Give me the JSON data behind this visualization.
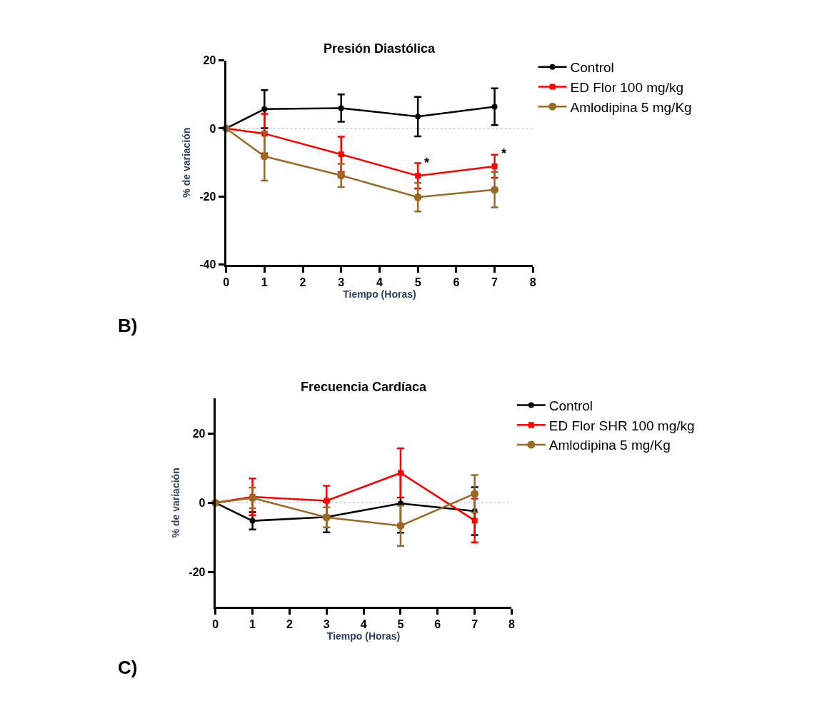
{
  "chart_data": [
    {
      "type": "line",
      "title": "Presión Diastólica",
      "xlabel": "Tiempo (Horas)",
      "ylabel": "% de variación",
      "x": [
        0,
        1,
        3,
        5,
        7
      ],
      "xlim": [
        0,
        8
      ],
      "xticks": [
        0,
        1,
        2,
        3,
        4,
        5,
        6,
        7,
        8
      ],
      "ylim": [
        -40,
        20
      ],
      "yticks": [
        -40,
        -20,
        0,
        20
      ],
      "grid": false,
      "legend": "top right",
      "line_style": "solid",
      "series": [
        {
          "name": "Control",
          "color": "#000000",
          "marker": "circle",
          "values": [
            0,
            5.7,
            6.0,
            3.5,
            6.4
          ],
          "errors": [
            null,
            5.6,
            4.0,
            5.8,
            5.4
          ]
        },
        {
          "name": "ED Flor 100 mg/kg",
          "color": "#ff0000",
          "marker": "square",
          "values": [
            0,
            -1.5,
            -7.6,
            -13.9,
            -11.1
          ],
          "errors": [
            null,
            5.8,
            5.2,
            3.7,
            3.4
          ]
        },
        {
          "name": "Amlodipina 5 mg/Kg",
          "color": "#9a6a24",
          "marker": "circle",
          "values": [
            0,
            -8.2,
            -13.8,
            -20.2,
            -18.0
          ],
          "errors": [
            null,
            7.1,
            3.4,
            4.2,
            5.2
          ]
        }
      ],
      "ref_lines": [
        {
          "axis": "y",
          "value": 0,
          "color": "#c8c8c8",
          "line_style": "dotted"
        }
      ],
      "annotations": [
        "B)",
        {
          "text": "*",
          "x": 5,
          "y": -13.9
        },
        {
          "text": "*",
          "x": 7,
          "y": -11.1
        }
      ]
    },
    {
      "type": "line",
      "title": "Frecuencia Cardíaca",
      "xlabel": "Tiempo (Horas)",
      "ylabel": "% de variación",
      "x": [
        0,
        1,
        3,
        5,
        7
      ],
      "xlim": [
        0,
        8
      ],
      "xticks": [
        0,
        1,
        2,
        3,
        4,
        5,
        6,
        7,
        8
      ],
      "ylim": [
        -30,
        30
      ],
      "yticks": [
        -20,
        0,
        20
      ],
      "grid": false,
      "legend": "top right",
      "line_style": "solid",
      "series": [
        {
          "name": "Control",
          "color": "#000000",
          "marker": "circle",
          "values": [
            0,
            -5.2,
            -4.1,
            -0.2,
            -2.4
          ],
          "errors": [
            null,
            2.5,
            4.4,
            8.4,
            6.9
          ]
        },
        {
          "name": "ED Flor SHR 100 mg/kg",
          "color": "#ff0000",
          "marker": "square",
          "values": [
            0,
            1.7,
            0.6,
            8.6,
            -5.1
          ],
          "errors": [
            null,
            5.3,
            4.3,
            7.1,
            6.3
          ]
        },
        {
          "name": "Amlodipina 5 mg/Kg",
          "color": "#9a6a24",
          "marker": "circle",
          "values": [
            0,
            1.4,
            -4.2,
            -6.6,
            2.6
          ],
          "errors": [
            null,
            3.0,
            2.9,
            5.8,
            5.4
          ]
        }
      ],
      "ref_lines": [
        {
          "axis": "y",
          "value": 0,
          "color": "#c8c8c8",
          "line_style": "dotted"
        }
      ],
      "annotations": [
        "C)"
      ]
    }
  ]
}
